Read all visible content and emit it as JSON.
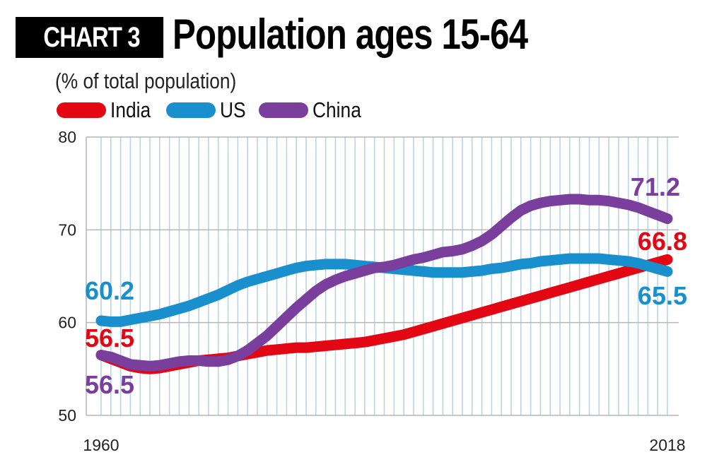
{
  "header": {
    "tag": "CHART 3",
    "title": "Population ages 15-64"
  },
  "chart_data": {
    "type": "line",
    "title": "Population ages 15-64",
    "subtitle": "(% of total population)",
    "ylim": [
      50,
      80
    ],
    "yticks": [
      "80",
      "70",
      "60",
      "50"
    ],
    "xticks": [
      "1960",
      "2018"
    ],
    "grid": "vertical lines yearly, horizontal lines at 60, 70, 80",
    "legend_position": "top-left",
    "x": [
      1960,
      1961,
      1962,
      1963,
      1964,
      1965,
      1966,
      1967,
      1968,
      1969,
      1970,
      1971,
      1972,
      1973,
      1974,
      1975,
      1976,
      1977,
      1978,
      1979,
      1980,
      1981,
      1982,
      1983,
      1984,
      1985,
      1986,
      1987,
      1988,
      1989,
      1990,
      1991,
      1992,
      1993,
      1994,
      1995,
      1996,
      1997,
      1998,
      1999,
      2000,
      2001,
      2002,
      2003,
      2004,
      2005,
      2006,
      2007,
      2008,
      2009,
      2010,
      2011,
      2012,
      2013,
      2014,
      2015,
      2016,
      2017,
      2018
    ],
    "series": [
      {
        "name": "India",
        "color": "#e30613",
        "values": [
          56.5,
          56.1,
          55.7,
          55.3,
          55.1,
          55.0,
          55.1,
          55.3,
          55.5,
          55.7,
          55.9,
          56.0,
          56.1,
          56.2,
          56.4,
          56.6,
          56.8,
          57.0,
          57.1,
          57.2,
          57.3,
          57.3,
          57.4,
          57.5,
          57.6,
          57.7,
          57.8,
          57.9,
          58.1,
          58.3,
          58.5,
          58.7,
          59.0,
          59.3,
          59.6,
          59.9,
          60.2,
          60.5,
          60.8,
          61.1,
          61.4,
          61.7,
          62.0,
          62.3,
          62.6,
          62.9,
          63.2,
          63.5,
          63.8,
          64.1,
          64.4,
          64.7,
          65.0,
          65.3,
          65.6,
          65.9,
          66.2,
          66.5,
          66.8
        ]
      },
      {
        "name": "US",
        "color": "#1a8fcd",
        "values": [
          60.2,
          60.1,
          60.1,
          60.3,
          60.5,
          60.7,
          60.9,
          61.2,
          61.5,
          61.8,
          62.2,
          62.6,
          63.0,
          63.5,
          64.0,
          64.4,
          64.7,
          65.0,
          65.3,
          65.6,
          65.9,
          66.1,
          66.2,
          66.3,
          66.3,
          66.3,
          66.2,
          66.1,
          66.0,
          65.9,
          65.8,
          65.7,
          65.6,
          65.5,
          65.4,
          65.4,
          65.4,
          65.4,
          65.5,
          65.6,
          65.8,
          65.9,
          66.1,
          66.3,
          66.4,
          66.6,
          66.7,
          66.8,
          66.9,
          66.9,
          66.9,
          66.9,
          66.8,
          66.7,
          66.6,
          66.4,
          66.1,
          65.8,
          65.5
        ]
      },
      {
        "name": "China",
        "color": "#7a3e9d",
        "values": [
          56.5,
          56.3,
          55.9,
          55.5,
          55.4,
          55.3,
          55.4,
          55.6,
          55.8,
          55.9,
          55.9,
          55.8,
          55.8,
          56.0,
          56.4,
          57.0,
          57.8,
          58.6,
          59.6,
          60.6,
          61.6,
          62.5,
          63.4,
          64.1,
          64.6,
          65.0,
          65.3,
          65.6,
          65.9,
          66.0,
          66.2,
          66.5,
          66.8,
          67.0,
          67.3,
          67.6,
          67.7,
          67.9,
          68.3,
          68.8,
          69.5,
          70.4,
          71.3,
          72.1,
          72.6,
          72.9,
          73.1,
          73.2,
          73.3,
          73.3,
          73.2,
          73.2,
          73.1,
          72.9,
          72.7,
          72.4,
          72.0,
          71.6,
          71.2
        ]
      }
    ],
    "annotations": [
      {
        "series": "US",
        "text": "60.2",
        "at": "start"
      },
      {
        "series": "India",
        "text": "56.5",
        "at": "start"
      },
      {
        "series": "China",
        "text": "56.5",
        "at": "start"
      },
      {
        "series": "China",
        "text": "71.2",
        "at": "end"
      },
      {
        "series": "India",
        "text": "66.8",
        "at": "end"
      },
      {
        "series": "US",
        "text": "65.5",
        "at": "end"
      }
    ]
  }
}
